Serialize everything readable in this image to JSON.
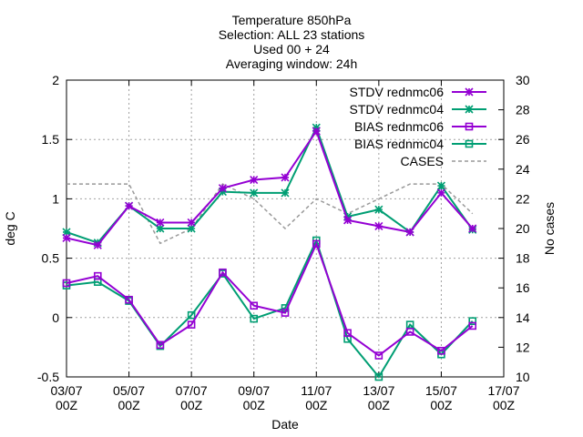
{
  "chart_data": {
    "type": "line",
    "title_lines": [
      "Temperature 850hPa",
      "Selection: ALL      23 stations",
      "Used 00 + 24",
      "Averaging window: 24h"
    ],
    "xlabel": "Date",
    "ylabel": "deg C",
    "y2label": "No cases",
    "x_ticks": [
      {
        "d": 0,
        "line1": "03/07",
        "line2": "00Z"
      },
      {
        "d": 2,
        "line1": "05/07",
        "line2": "00Z"
      },
      {
        "d": 4,
        "line1": "07/07",
        "line2": "00Z"
      },
      {
        "d": 6,
        "line1": "09/07",
        "line2": "00Z"
      },
      {
        "d": 8,
        "line1": "11/07",
        "line2": "00Z"
      },
      {
        "d": 10,
        "line1": "13/07",
        "line2": "00Z"
      },
      {
        "d": 12,
        "line1": "15/07",
        "line2": "00Z"
      },
      {
        "d": 14,
        "line1": "17/07",
        "line2": "00Z"
      }
    ],
    "xlim": [
      0,
      14
    ],
    "ylim": [
      -0.5,
      2
    ],
    "y_ticks": [
      "-0.5",
      "0",
      "0.5",
      "1",
      "1.5",
      "2"
    ],
    "y2lim": [
      10,
      30
    ],
    "y2_ticks": [
      "10",
      "12",
      "14",
      "16",
      "18",
      "20",
      "22",
      "24",
      "26",
      "28",
      "30"
    ],
    "grid": true,
    "legend_position": "top-right",
    "x": [
      0,
      1,
      2,
      3,
      4,
      5,
      6,
      7,
      8,
      9,
      10,
      11,
      12,
      13
    ],
    "series": [
      {
        "name": "STDV rednmc06",
        "color": "#9400d3",
        "marker": "x-star",
        "axis": "left",
        "values": [
          0.67,
          0.61,
          0.94,
          0.8,
          0.8,
          1.09,
          1.16,
          1.18,
          1.57,
          0.82,
          0.77,
          0.72,
          1.05,
          0.75
        ]
      },
      {
        "name": "STDV rednmc04",
        "color": "#009e73",
        "marker": "x-star",
        "axis": "left",
        "values": [
          0.72,
          0.63,
          0.94,
          0.75,
          0.75,
          1.06,
          1.05,
          1.05,
          1.6,
          0.85,
          0.91,
          0.72,
          1.11,
          0.74
        ]
      },
      {
        "name": "BIAS rednmc06",
        "color": "#9400d3",
        "marker": "square",
        "axis": "left",
        "values": [
          0.29,
          0.35,
          0.15,
          -0.23,
          -0.06,
          0.38,
          0.1,
          0.04,
          0.62,
          -0.13,
          -0.32,
          -0.12,
          -0.28,
          -0.07
        ]
      },
      {
        "name": "BIAS rednmc04",
        "color": "#009e73",
        "marker": "square",
        "axis": "left",
        "values": [
          0.27,
          0.3,
          0.14,
          -0.24,
          0.02,
          0.37,
          -0.01,
          0.08,
          0.65,
          -0.18,
          -0.5,
          -0.06,
          -0.31,
          -0.03
        ]
      },
      {
        "name": "CASES",
        "color": "#999999",
        "marker": "none",
        "dash": true,
        "axis": "right",
        "values": [
          23,
          23,
          23,
          19,
          20,
          23,
          22,
          20,
          22,
          21,
          22,
          23,
          23,
          21
        ]
      }
    ]
  }
}
